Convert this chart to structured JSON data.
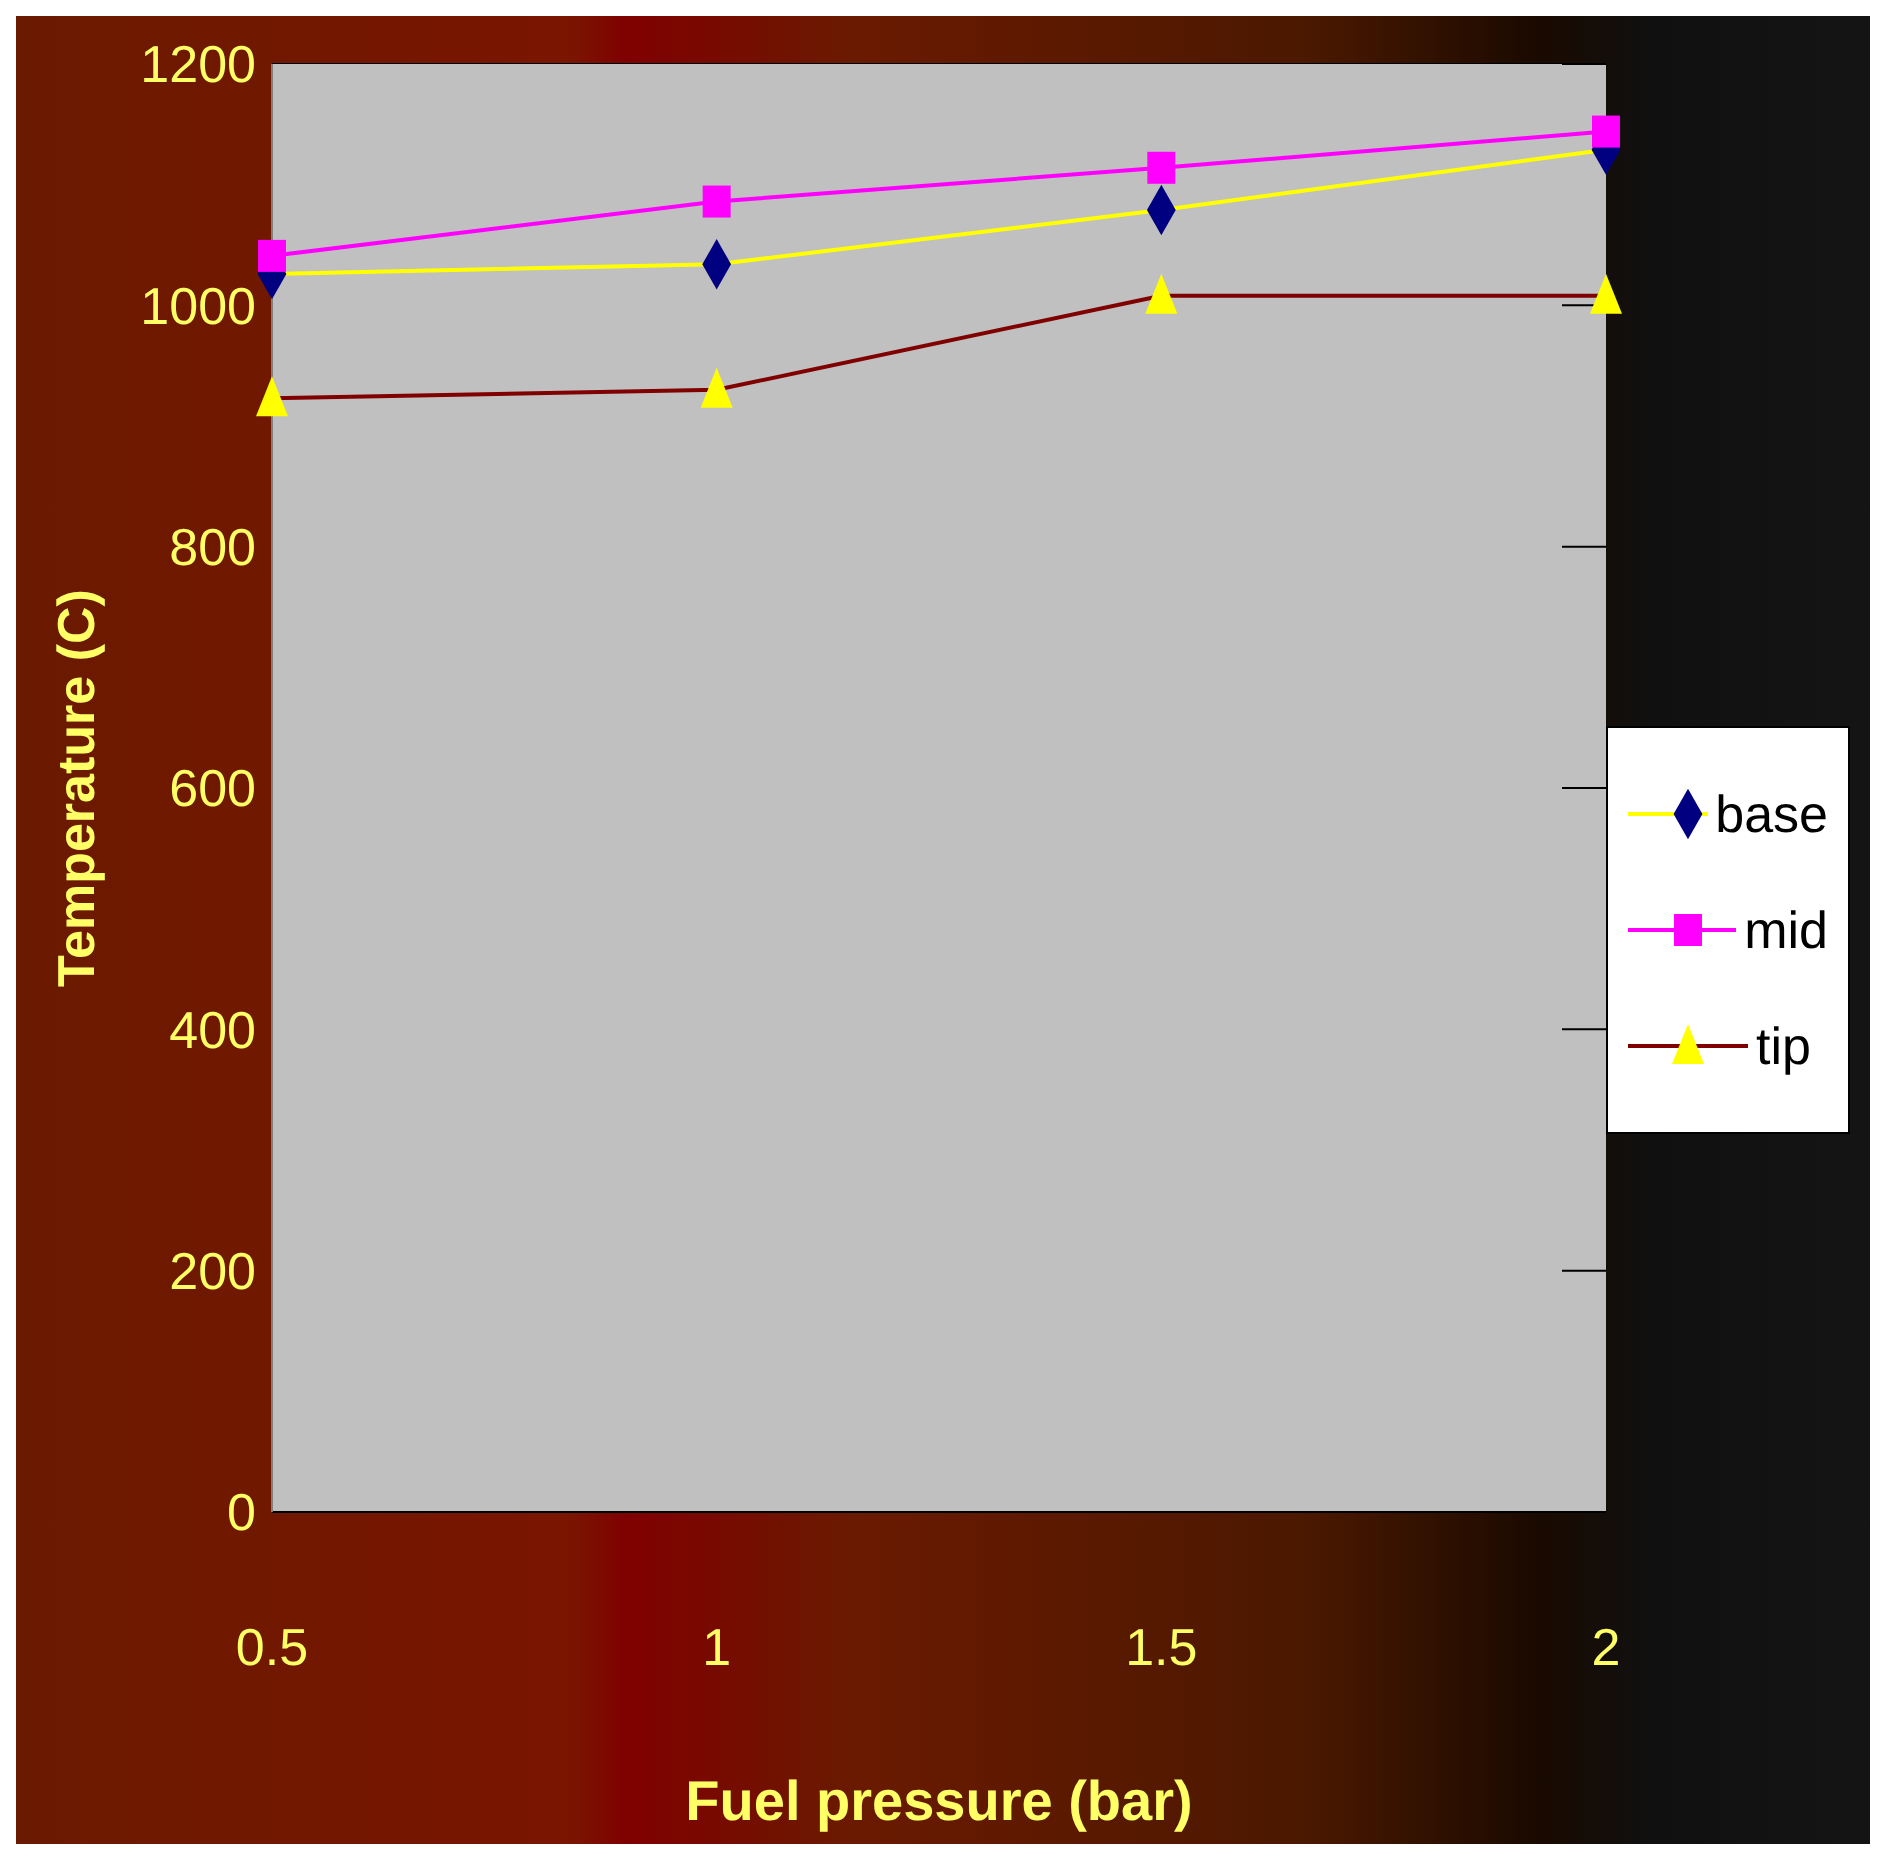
{
  "chart_data": {
    "type": "line",
    "xlabel": "Fuel pressure (bar)",
    "ylabel": "Temperature (C)",
    "categories": [
      "0.5",
      "1",
      "1.5",
      "2"
    ],
    "series": [
      {
        "name": "base",
        "color": "#ffff00",
        "marker": "diamond",
        "colors": [
          "#000080",
          "#000080",
          "#000080",
          "#000080"
        ],
        "values": [
          1026,
          1034,
          1079,
          1129
        ]
      },
      {
        "name": "mid",
        "color": "#ff00ff",
        "marker": "square",
        "colors": [
          "#ff00ff",
          "#ff00ff",
          "#ff00ff",
          "#ff00ff"
        ],
        "values": [
          1041,
          1086,
          1114,
          1144
        ]
      },
      {
        "name": "tip",
        "color": "#800000",
        "marker": "triangle",
        "colors": [
          "#ffff00",
          "#ffff00",
          "#ffff00",
          "#ffff00"
        ],
        "values": [
          923,
          930,
          1008,
          1008
        ]
      }
    ],
    "ylim": [
      0,
      1200
    ],
    "yticks": [
      0,
      200,
      400,
      600,
      800,
      1000,
      1200
    ],
    "grid": "y",
    "legend": "right"
  }
}
